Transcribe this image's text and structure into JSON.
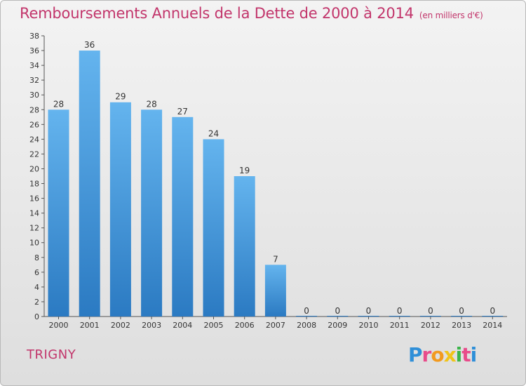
{
  "header": {
    "title": "Remboursements Annuels de la Dette de 2000 à 2014",
    "unit": "(en milliers d'€)"
  },
  "footer": {
    "town": "TRIGNY",
    "logo_letters": [
      "P",
      "r",
      "o",
      "x",
      "i",
      "t",
      "i"
    ],
    "logo_colors": [
      "#2f8fd8",
      "#e84b8a",
      "#f29a1f",
      "#f0c419",
      "#3bb54a",
      "#e84b8a",
      "#2f8fd8"
    ]
  },
  "colors": {
    "title": "#c2356b",
    "bar_top": "#64b4ee",
    "bar_bottom": "#2b7ac2"
  },
  "chart_data": {
    "type": "bar",
    "title": "Remboursements Annuels de la Dette de 2000 à 2014",
    "xlabel": "",
    "ylabel": "",
    "categories": [
      "2000",
      "2001",
      "2002",
      "2003",
      "2004",
      "2005",
      "2006",
      "2007",
      "2008",
      "2009",
      "2010",
      "2011",
      "2012",
      "2013",
      "2014"
    ],
    "values": [
      28,
      36,
      29,
      28,
      27,
      24,
      19,
      7,
      0,
      0,
      0,
      0,
      0,
      0,
      0
    ],
    "ylim": [
      0,
      38
    ],
    "yticks": [
      0,
      2,
      4,
      6,
      8,
      10,
      12,
      14,
      16,
      18,
      20,
      22,
      24,
      26,
      28,
      30,
      32,
      34,
      36,
      38
    ],
    "grid": false,
    "legend": "none"
  }
}
